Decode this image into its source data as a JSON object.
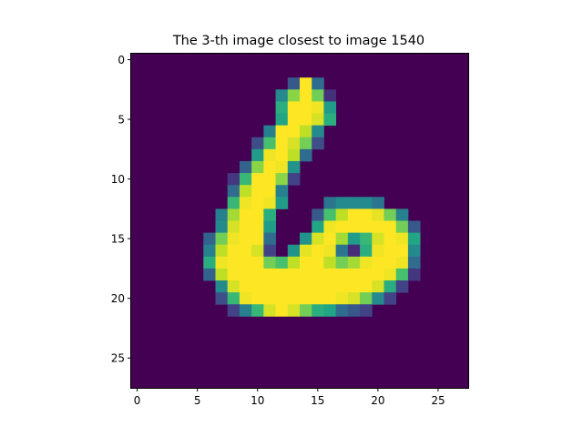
{
  "chart_data": {
    "type": "heatmap",
    "title": "The 3-th image closest to image 1540",
    "colormap": "viridis",
    "vmin": 0,
    "vmax": 255,
    "xlim": [
      -0.5,
      27.5
    ],
    "ylim": [
      27.5,
      -0.5
    ],
    "xticks": [
      0,
      5,
      10,
      15,
      20,
      25
    ],
    "yticks": [
      0,
      5,
      10,
      15,
      20,
      25
    ],
    "xlabel": "",
    "ylabel": "",
    "grid": false,
    "shape": [
      28,
      28
    ],
    "pixels": {
      "2": [
        [
          13,
          70
        ],
        [
          14,
          255
        ],
        [
          15,
          90
        ]
      ],
      "3": [
        [
          12,
          120
        ],
        [
          13,
          210
        ],
        [
          14,
          255
        ],
        [
          15,
          200
        ],
        [
          16,
          35
        ]
      ],
      "4": [
        [
          12,
          160
        ],
        [
          13,
          255
        ],
        [
          14,
          255
        ],
        [
          15,
          250
        ],
        [
          16,
          140
        ]
      ],
      "5": [
        [
          12,
          150
        ],
        [
          13,
          255
        ],
        [
          14,
          255
        ],
        [
          15,
          240
        ],
        [
          16,
          160
        ]
      ],
      "6": [
        [
          11,
          110
        ],
        [
          12,
          255
        ],
        [
          13,
          255
        ],
        [
          14,
          230
        ],
        [
          15,
          120
        ]
      ],
      "7": [
        [
          10,
          60
        ],
        [
          11,
          180
        ],
        [
          12,
          255
        ],
        [
          13,
          240
        ],
        [
          14,
          200
        ],
        [
          15,
          60
        ]
      ],
      "8": [
        [
          10,
          140
        ],
        [
          11,
          250
        ],
        [
          12,
          255
        ],
        [
          13,
          230
        ],
        [
          14,
          90
        ]
      ],
      "9": [
        [
          9,
          80
        ],
        [
          10,
          210
        ],
        [
          11,
          255
        ],
        [
          12,
          250
        ],
        [
          13,
          130
        ]
      ],
      "10": [
        [
          8,
          40
        ],
        [
          9,
          170
        ],
        [
          10,
          255
        ],
        [
          11,
          255
        ],
        [
          12,
          210
        ],
        [
          13,
          50
        ]
      ],
      "11": [
        [
          8,
          90
        ],
        [
          9,
          230
        ],
        [
          10,
          255
        ],
        [
          11,
          255
        ],
        [
          12,
          110
        ]
      ],
      "12": [
        [
          8,
          170
        ],
        [
          9,
          250
        ],
        [
          10,
          255
        ],
        [
          11,
          250
        ],
        [
          12,
          140
        ],
        [
          16,
          100
        ],
        [
          17,
          120
        ],
        [
          18,
          120
        ],
        [
          19,
          120
        ],
        [
          20,
          100
        ]
      ],
      "13": [
        [
          7,
          110
        ],
        [
          8,
          220
        ],
        [
          9,
          255
        ],
        [
          10,
          255
        ],
        [
          11,
          160
        ],
        [
          15,
          70
        ],
        [
          16,
          180
        ],
        [
          17,
          230
        ],
        [
          18,
          255
        ],
        [
          19,
          255
        ],
        [
          20,
          245
        ],
        [
          21,
          200
        ],
        [
          22,
          110
        ]
      ],
      "14": [
        [
          7,
          120
        ],
        [
          8,
          240
        ],
        [
          9,
          255
        ],
        [
          10,
          255
        ],
        [
          11,
          140
        ],
        [
          15,
          150
        ],
        [
          16,
          250
        ],
        [
          17,
          255
        ],
        [
          18,
          255
        ],
        [
          19,
          255
        ],
        [
          20,
          255
        ],
        [
          21,
          255
        ],
        [
          22,
          200
        ],
        [
          23,
          70
        ]
      ],
      "15": [
        [
          6,
          80
        ],
        [
          7,
          200
        ],
        [
          8,
          250
        ],
        [
          9,
          255
        ],
        [
          10,
          255
        ],
        [
          11,
          90
        ],
        [
          14,
          130
        ],
        [
          15,
          240
        ],
        [
          16,
          255
        ],
        [
          17,
          220
        ],
        [
          18,
          140
        ],
        [
          19,
          170
        ],
        [
          20,
          240
        ],
        [
          21,
          255
        ],
        [
          22,
          250
        ],
        [
          23,
          150
        ]
      ],
      "16": [
        [
          6,
          110
        ],
        [
          7,
          230
        ],
        [
          8,
          255
        ],
        [
          9,
          255
        ],
        [
          10,
          240
        ],
        [
          11,
          50
        ],
        [
          13,
          130
        ],
        [
          14,
          245
        ],
        [
          15,
          255
        ],
        [
          16,
          250
        ],
        [
          17,
          100
        ],
        [
          18,
          30
        ],
        [
          19,
          160
        ],
        [
          20,
          250
        ],
        [
          21,
          255
        ],
        [
          22,
          255
        ],
        [
          23,
          120
        ]
      ],
      "17": [
        [
          6,
          160
        ],
        [
          7,
          250
        ],
        [
          8,
          255
        ],
        [
          9,
          255
        ],
        [
          10,
          255
        ],
        [
          11,
          200
        ],
        [
          12,
          180
        ],
        [
          13,
          230
        ],
        [
          14,
          255
        ],
        [
          15,
          255
        ],
        [
          16,
          230
        ],
        [
          17,
          200
        ],
        [
          18,
          220
        ],
        [
          19,
          250
        ],
        [
          20,
          255
        ],
        [
          21,
          255
        ],
        [
          22,
          250
        ],
        [
          23,
          90
        ]
      ],
      "18": [
        [
          6,
          80
        ],
        [
          7,
          230
        ],
        [
          8,
          255
        ],
        [
          9,
          255
        ],
        [
          10,
          255
        ],
        [
          11,
          255
        ],
        [
          12,
          255
        ],
        [
          13,
          255
        ],
        [
          14,
          255
        ],
        [
          15,
          255
        ],
        [
          16,
          255
        ],
        [
          17,
          255
        ],
        [
          18,
          255
        ],
        [
          19,
          255
        ],
        [
          20,
          255
        ],
        [
          21,
          250
        ],
        [
          22,
          180
        ],
        [
          23,
          40
        ]
      ],
      "19": [
        [
          7,
          120
        ],
        [
          8,
          240
        ],
        [
          9,
          255
        ],
        [
          10,
          255
        ],
        [
          11,
          255
        ],
        [
          12,
          255
        ],
        [
          13,
          255
        ],
        [
          14,
          255
        ],
        [
          15,
          255
        ],
        [
          16,
          255
        ],
        [
          17,
          255
        ],
        [
          18,
          255
        ],
        [
          19,
          255
        ],
        [
          20,
          240
        ],
        [
          21,
          160
        ],
        [
          22,
          50
        ]
      ],
      "20": [
        [
          7,
          60
        ],
        [
          8,
          170
        ],
        [
          9,
          250
        ],
        [
          10,
          255
        ],
        [
          11,
          255
        ],
        [
          12,
          255
        ],
        [
          13,
          255
        ],
        [
          14,
          255
        ],
        [
          15,
          255
        ],
        [
          16,
          255
        ],
        [
          17,
          250
        ],
        [
          18,
          240
        ],
        [
          19,
          200
        ],
        [
          20,
          120
        ],
        [
          21,
          50
        ]
      ],
      "21": [
        [
          8,
          50
        ],
        [
          9,
          110
        ],
        [
          10,
          170
        ],
        [
          11,
          240
        ],
        [
          12,
          255
        ],
        [
          13,
          240
        ],
        [
          14,
          200
        ],
        [
          15,
          160
        ],
        [
          16,
          150
        ],
        [
          17,
          90
        ],
        [
          18,
          70
        ],
        [
          19,
          50
        ]
      ]
    }
  }
}
